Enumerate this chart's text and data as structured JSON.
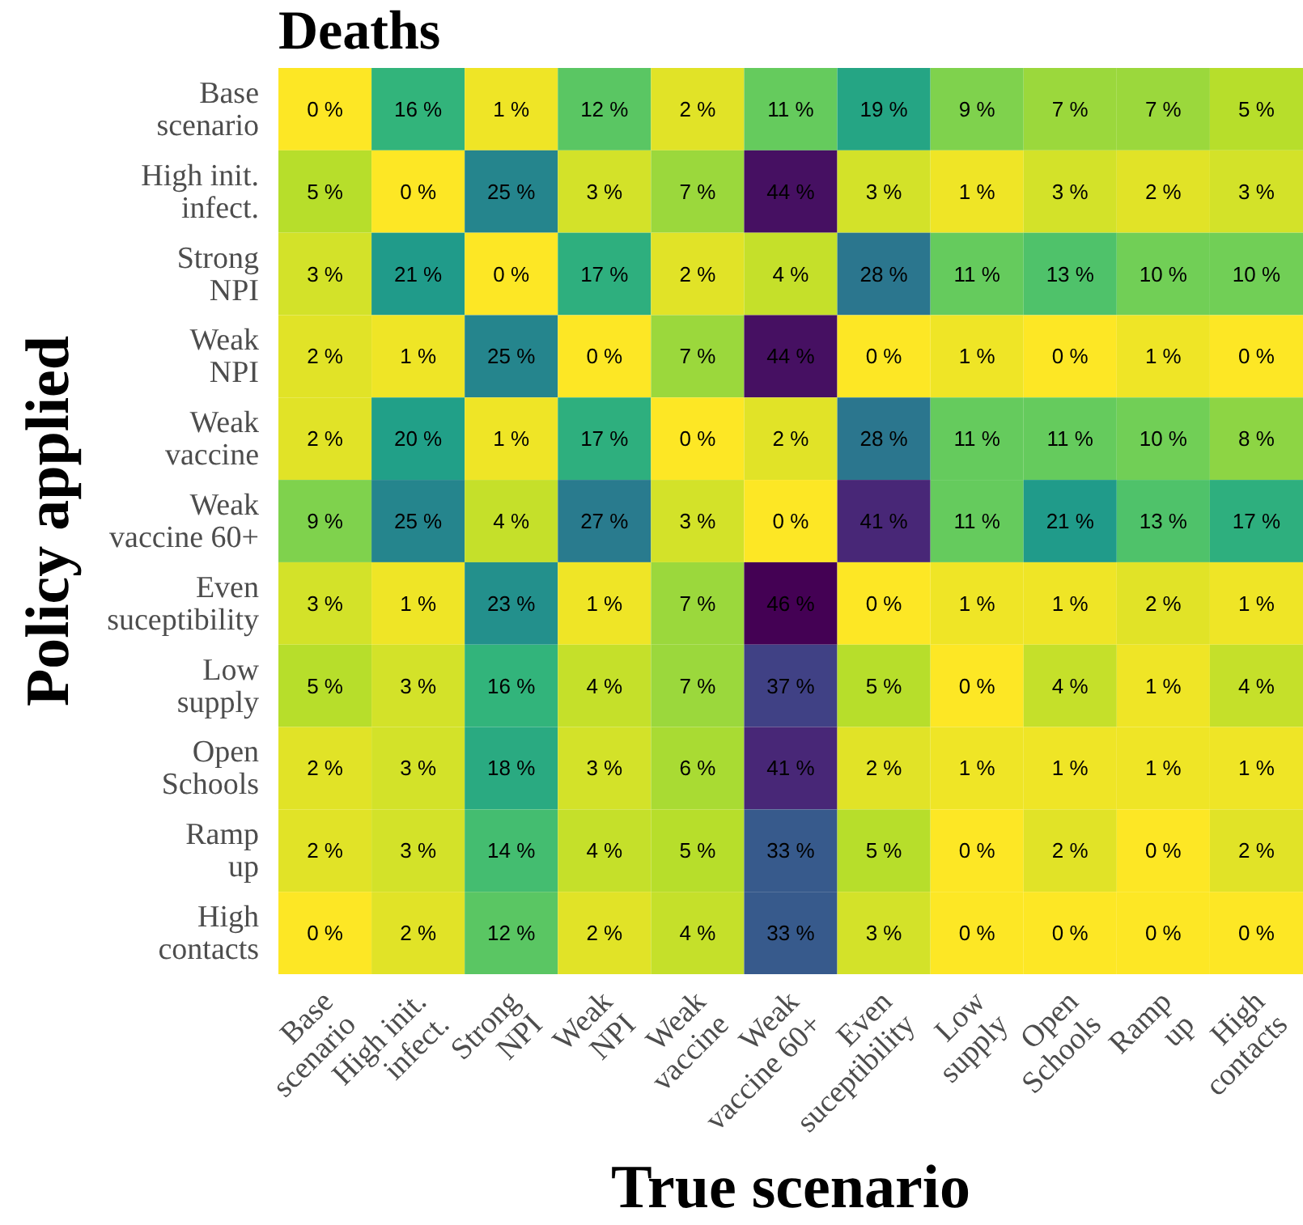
{
  "chart_data": {
    "type": "heatmap",
    "title": "Deaths",
    "xlabel": "True scenario",
    "ylabel": "Policy applied",
    "categories": [
      "Base\nscenario",
      "High init.\ninfect.",
      "Strong\nNPI",
      "Weak\nNPI",
      "Weak\nvaccine",
      "Weak\nvaccine 60+",
      "Even\nsuceptibility",
      "Low\nsupply",
      "Open\nSchools",
      "Ramp\nup",
      "High\ncontacts"
    ],
    "y_categories": [
      "Base\nscenario",
      "High init.\ninfect.",
      "Strong\nNPI",
      "Weak\nNPI",
      "Weak\nvaccine",
      "Weak\nvaccine 60+",
      "Even\nsuceptibility",
      "Low\nsupply",
      "Open\nSchools",
      "Ramp\nup",
      "High\ncontacts"
    ],
    "cells": [
      [
        0,
        16,
        1,
        12,
        2,
        11,
        19,
        9,
        7,
        7,
        5
      ],
      [
        5,
        0,
        25,
        3,
        7,
        44,
        3,
        1,
        3,
        2,
        3
      ],
      [
        3,
        21,
        0,
        17,
        2,
        4,
        28,
        11,
        13,
        10,
        10
      ],
      [
        2,
        1,
        25,
        0,
        7,
        44,
        0,
        1,
        0,
        1,
        0
      ],
      [
        2,
        20,
        1,
        17,
        0,
        2,
        28,
        11,
        11,
        10,
        8
      ],
      [
        9,
        25,
        4,
        27,
        3,
        0,
        41,
        11,
        21,
        13,
        17
      ],
      [
        3,
        1,
        23,
        1,
        7,
        46,
        0,
        1,
        1,
        2,
        1
      ],
      [
        5,
        3,
        16,
        4,
        7,
        37,
        5,
        0,
        4,
        1,
        4
      ],
      [
        2,
        3,
        18,
        3,
        6,
        41,
        2,
        1,
        1,
        1,
        1
      ],
      [
        2,
        3,
        14,
        4,
        5,
        33,
        5,
        0,
        2,
        0,
        2
      ],
      [
        0,
        2,
        12,
        2,
        4,
        33,
        3,
        0,
        0,
        0,
        0
      ]
    ],
    "cell_labels": [
      [
        "0 %",
        "16 %",
        "1 %",
        "12 %",
        "2 %",
        "11 %",
        "19 %",
        "9 %",
        "7 %",
        "7 %",
        "5 %"
      ],
      [
        "5 %",
        "0 %",
        "25 %",
        "3 %",
        "7 %",
        "44 %",
        "3 %",
        "1 %",
        "3 %",
        "2 %",
        "3 %"
      ],
      [
        "3 %",
        "21 %",
        "0 %",
        "17 %",
        "2 %",
        "4 %",
        "28 %",
        "11 %",
        "13 %",
        "10 %",
        "10 %"
      ],
      [
        "2 %",
        "1 %",
        "25 %",
        "0 %",
        "7 %",
        "44 %",
        "0 %",
        "1 %",
        "0 %",
        "1 %",
        "0 %"
      ],
      [
        "2 %",
        "20 %",
        "1 %",
        "17 %",
        "0 %",
        "2 %",
        "28 %",
        "11 %",
        "11 %",
        "10 %",
        "8 %"
      ],
      [
        "9 %",
        "25 %",
        "4 %",
        "27 %",
        "3 %",
        "0 %",
        "41 %",
        "11 %",
        "21 %",
        "13 %",
        "17 %"
      ],
      [
        "3 %",
        "1 %",
        "23 %",
        "1 %",
        "7 %",
        "46 %",
        "0 %",
        "1 %",
        "1 %",
        "2 %",
        "1 %"
      ],
      [
        "5 %",
        "3 %",
        "16 %",
        "4 %",
        "7 %",
        "37 %",
        "5 %",
        "0 %",
        "4 %",
        "1 %",
        "4 %"
      ],
      [
        "2 %",
        "3 %",
        "18 %",
        "3 %",
        "6 %",
        "41 %",
        "2 %",
        "1 %",
        "1 %",
        "1 %",
        "1 %"
      ],
      [
        "2 %",
        "3 %",
        "14 %",
        "4 %",
        "5 %",
        "33 %",
        "5 %",
        "0 %",
        "2 %",
        "0 %",
        "2 %"
      ],
      [
        "0 %",
        "2 %",
        "12 %",
        "2 %",
        "4 %",
        "33 %",
        "3 %",
        "0 %",
        "0 %",
        "0 %",
        "0 %"
      ]
    ]
  }
}
